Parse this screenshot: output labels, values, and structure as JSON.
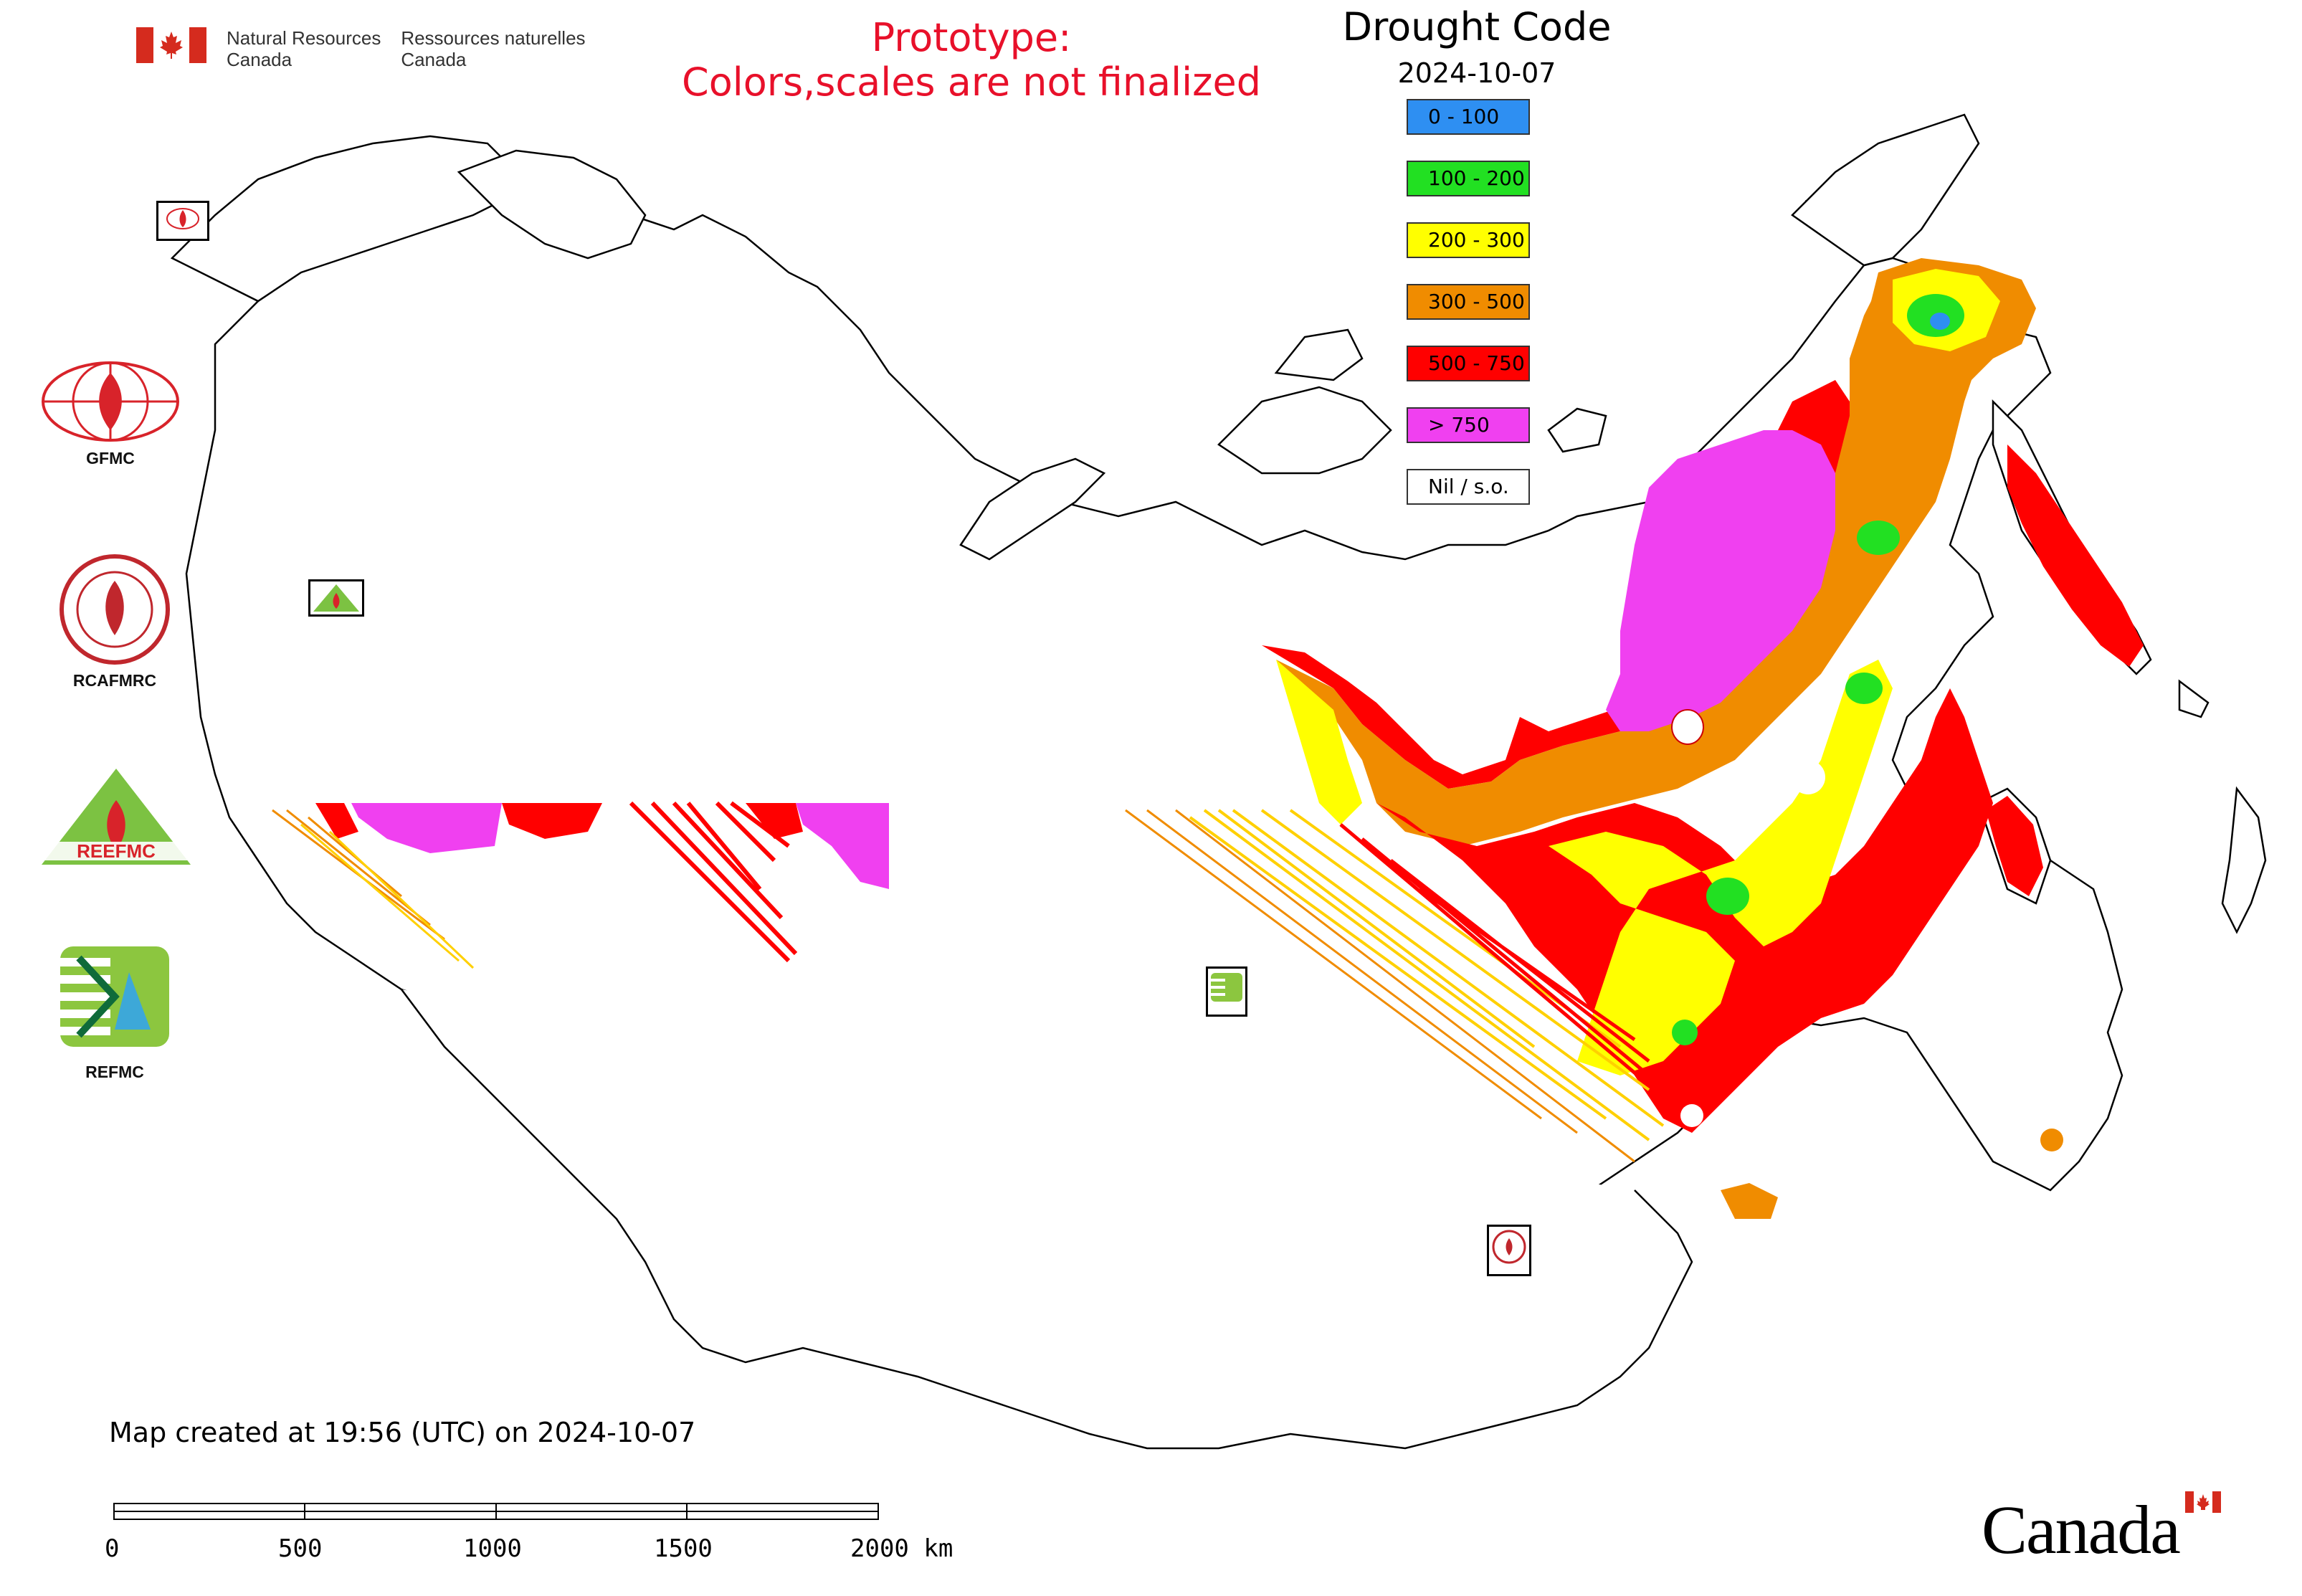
{
  "header": {
    "department_en_line1": "Natural Resources",
    "department_en_line2": "Canada",
    "department_fr_line1": "Ressources naturelles",
    "department_fr_line2": "Canada",
    "prototype_line1": "Prototype:",
    "prototype_line2": "Colors,scales are not finalized"
  },
  "legend": {
    "title": "Drought Code",
    "date": "2024-10-07",
    "items": [
      {
        "label": "0 - 100",
        "color": "#2e8ff2"
      },
      {
        "label": "100 - 200",
        "color": "#22e022"
      },
      {
        "label": "200 - 300",
        "color": "#ffff00"
      },
      {
        "label": "300 - 500",
        "color": "#f08c00"
      },
      {
        "label": "500 - 750",
        "color": "#ff0000"
      },
      {
        "label": "> 750",
        "color": "#f040f0"
      },
      {
        "label": "Nil / s.o.",
        "color": "#ffffff"
      }
    ]
  },
  "logos": {
    "gfmc": "GFMC",
    "rcafmrc": "RCAFMRC",
    "reefmc": "REEFMC",
    "refmc": "REFMC"
  },
  "footer": {
    "created": "Map created at 19:56 (UTC) on 2024-10-07",
    "scale_ticks": [
      "0",
      "500",
      "1000",
      "1500",
      "2000 km"
    ],
    "wordmark": "Canada"
  },
  "colors": {
    "accent_red": "#e8102a",
    "flag_red": "#d52b1e"
  }
}
